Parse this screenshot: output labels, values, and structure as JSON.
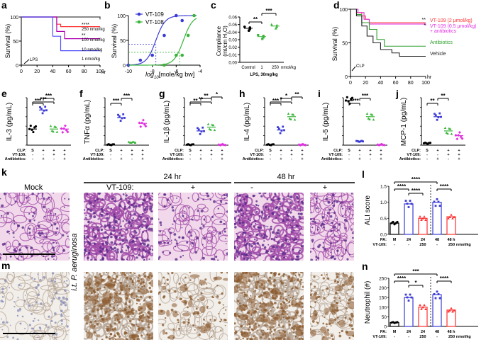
{
  "panels": {
    "a": {
      "letter": "a",
      "ylabel": "Survival (%)",
      "xlabel": "hr",
      "annotation": "LPS",
      "xticks": [
        "0",
        "20",
        "40",
        "60",
        "80",
        "100"
      ],
      "yticks": [
        "0",
        "50",
        "100"
      ],
      "legend": [
        {
          "label": "250 nmol/kg",
          "sig": "****",
          "color": "#444444"
        },
        {
          "label": "100 nmol/kg",
          "sig": "**",
          "color": "#ff3030"
        },
        {
          "label": "10 nmol/kg",
          "sig": "",
          "color": "#b000b0"
        },
        {
          "label": "1 nmol/kg",
          "sig": "",
          "color": "#5050ff"
        }
      ]
    },
    "b": {
      "letter": "b",
      "ylabel": "Survival (%)",
      "xlabel": "log10 [mole/kg bw]",
      "xlabel_pre": "log",
      "xlabel_sub": "10",
      "xlabel_post": "[mole/kg bw]",
      "xticks": [
        "-10",
        "-8",
        "-6",
        "-4"
      ],
      "yticks": [
        "0",
        "50",
        "100"
      ],
      "legend": [
        {
          "label": "VT-109",
          "color": "#3b3bd6"
        },
        {
          "label": "VT-108",
          "color": "#39b539"
        }
      ]
    },
    "c": {
      "letter": "c",
      "ylabel_pre": "Compliance",
      "ylabel": "(ml/cm H",
      "ylabel_sub": "2",
      "ylabel_post": "O)",
      "yticks": [
        "0.00",
        "0.01",
        "0.02",
        "0.03",
        "0.04",
        "0.05",
        "0.06"
      ],
      "xcats": [
        "Control",
        "1",
        "250"
      ],
      "xunit": "nmol/kg",
      "xlabel": "LPS, 30mg/kg",
      "sig": [
        "**",
        "***"
      ]
    },
    "d": {
      "letter": "d",
      "ylabel": "Survival (%)",
      "xlabel": "hr",
      "annotation": "CLP",
      "xticks": [
        "0",
        "20",
        "40",
        "60",
        "80",
        "100"
      ],
      "yticks": [
        "0",
        "50",
        "100"
      ],
      "legend": [
        {
          "label": "VT-109 (2 μmol/kg)",
          "sig": "**",
          "color": "#ff3030"
        },
        {
          "label": "VT-109 (0.5 μmol/kg)",
          "sig": "*",
          "color": "#e030e0"
        },
        {
          "label": "+ antibiotics",
          "sig": "",
          "color": "#e030e0"
        },
        {
          "label": "Antibiotics",
          "sig": "",
          "color": "#30a030"
        },
        {
          "label": "Vehicle",
          "sig": "",
          "color": "#222222"
        }
      ]
    },
    "cytokines": [
      {
        "letter": "e",
        "ylabel": "IL-3 (pg/mL)",
        "yticks": [
          "0",
          "1",
          "2",
          "3",
          "4",
          "5"
        ],
        "sig": [
          "***",
          "***",
          "***"
        ]
      },
      {
        "letter": "f",
        "ylabel": "TNFα (pg/mL)",
        "yticks": [
          "0",
          "1",
          "2",
          "3",
          "4",
          "5"
        ],
        "sig": [
          "***",
          "***"
        ]
      },
      {
        "letter": "g",
        "ylabel": "IL-1β (pg/mL)",
        "yticks": [
          "0",
          "1",
          "2",
          "3",
          "4",
          "5"
        ],
        "sig": [
          "**",
          "**",
          "**",
          "*"
        ]
      },
      {
        "letter": "h",
        "ylabel": "IL-4 (pg/mL)",
        "yticks": [
          "0",
          "1",
          "2",
          "3",
          "4",
          "5"
        ],
        "sig": [
          "***",
          "*",
          "*",
          "**"
        ]
      },
      {
        "letter": "i",
        "ylabel": "IL-5 (pg/mL)",
        "yticks": [
          "0",
          "1",
          "2",
          "3",
          "4",
          "5"
        ],
        "sig": [
          "****",
          "***"
        ]
      },
      {
        "letter": "j",
        "ylabel": "MCP-1 (pg/mL)",
        "yticks": [
          "0",
          "1",
          "2",
          "3",
          "4",
          "5"
        ],
        "sig": [
          "**",
          "**"
        ]
      }
    ],
    "treatment_rows": {
      "labels": [
        "CLP:",
        "VT-109:",
        "Antibiotics:"
      ],
      "values": [
        [
          "S",
          "+",
          "+",
          "+"
        ],
        [
          "-",
          "-",
          "+",
          "+"
        ],
        [
          "-",
          "+",
          "-",
          "+"
        ]
      ]
    },
    "k": {
      "letter": "k",
      "mock": "Mock",
      "vt": "VT-109:",
      "t1": "24 hr",
      "t2": "48 hr",
      "signs": [
        "-",
        "+",
        "-",
        "+"
      ],
      "side": "i.t. P. aeruginosa"
    },
    "l": {
      "letter": "l",
      "ylabel": "ALI score",
      "yticks": [
        "0.0",
        "0.5",
        "1.0",
        "1.5"
      ],
      "sig": [
        "****",
        "****",
        "****",
        "****"
      ],
      "pa_label": "PA:",
      "pa": [
        "M",
        "24",
        "24",
        "48",
        "48 h"
      ],
      "vt_label": "VT-109:",
      "vt": [
        "-",
        "-",
        "250",
        "-",
        "250 nmol/kg"
      ]
    },
    "m": {
      "letter": "m"
    },
    "n": {
      "letter": "n",
      "ylabel": "Neutrophil (#)",
      "yticks": [
        "0",
        "50",
        "100",
        "150",
        "200",
        "250"
      ],
      "sig": [
        "****",
        "*",
        "****",
        "***"
      ],
      "pa_label": "PA:",
      "pa": [
        "M",
        "24",
        "24",
        "48",
        "48 h"
      ],
      "vt_label": "VT-109:",
      "vt": [
        "-",
        "-",
        "250",
        "-",
        "250 nmol/kg"
      ]
    }
  },
  "colors": {
    "black": "#000000",
    "blue": "#3b3bd6",
    "green": "#39b539",
    "red": "#ff3030",
    "magenta": "#e030e0",
    "he_bg": "#f1d8ea",
    "he_tissue": "#a04aa8",
    "ihc_bg": "#f2eee9",
    "ihc_brown": "#8a5a2e"
  },
  "chart_data": [
    {
      "type": "line",
      "panel": "a",
      "title": "",
      "xlabel": "hr",
      "ylabel": "Survival (%)",
      "xlim": [
        0,
        100
      ],
      "ylim": [
        0,
        100
      ],
      "series": [
        {
          "name": "250 nmol/kg",
          "x": [
            0,
            60,
            100
          ],
          "y": [
            100,
            100,
            95
          ]
        },
        {
          "name": "100 nmol/kg",
          "x": [
            0,
            45,
            50,
            100
          ],
          "y": [
            100,
            85,
            80,
            80
          ]
        },
        {
          "name": "10 nmol/kg",
          "x": [
            0,
            45,
            55,
            100
          ],
          "y": [
            100,
            70,
            55,
            55
          ]
        },
        {
          "name": "1 nmol/kg",
          "x": [
            0,
            40,
            50,
            100
          ],
          "y": [
            100,
            60,
            30,
            30
          ]
        }
      ]
    },
    {
      "type": "scatter",
      "panel": "b",
      "xlabel": "log10 [mole/kg bw]",
      "ylabel": "Survival (%)",
      "xlim": [
        -10,
        -4
      ],
      "ylim": [
        0,
        100
      ],
      "series": [
        {
          "name": "VT-109",
          "x": [
            -10,
            -9,
            -8,
            -7,
            -6,
            -5.5
          ],
          "y": [
            0,
            10,
            20,
            60,
            100,
            90
          ]
        },
        {
          "name": "VT-108",
          "x": [
            -7,
            -6,
            -5.5,
            -5,
            -4.5
          ],
          "y": [
            0,
            20,
            20,
            60,
            100
          ]
        }
      ]
    },
    {
      "type": "bar",
      "panel": "c",
      "ylabel": "Compliance (ml/cm H2O)",
      "ylim": [
        0,
        0.06
      ],
      "categories": [
        "Control",
        "1",
        "250"
      ],
      "values": [
        0.045,
        0.034,
        0.048
      ]
    },
    {
      "type": "line",
      "panel": "d",
      "xlabel": "hr",
      "ylabel": "Survival (%)",
      "xlim": [
        0,
        100
      ],
      "ylim": [
        0,
        100
      ],
      "series": [
        {
          "name": "VT-109 (2 μmol/kg)",
          "x": [
            0,
            20,
            100
          ],
          "y": [
            100,
            80,
            80
          ]
        },
        {
          "name": "VT-109 (0.5 μmol/kg) + antibiotics",
          "x": [
            0,
            20,
            100
          ],
          "y": [
            100,
            75,
            75
          ]
        },
        {
          "name": "Antibiotics",
          "x": [
            0,
            20,
            40,
            100
          ],
          "y": [
            100,
            70,
            45,
            45
          ]
        },
        {
          "name": "Vehicle",
          "x": [
            0,
            20,
            40,
            60,
            100
          ],
          "y": [
            100,
            60,
            40,
            30,
            30
          ]
        }
      ]
    },
    {
      "type": "scatter",
      "panel": "e",
      "ylabel": "IL-3 (pg/mL)",
      "ylim": [
        0,
        5
      ],
      "categories": [
        "1",
        "2",
        "3",
        "4"
      ],
      "values": [
        1.7,
        3.7,
        1.7,
        1.7
      ]
    },
    {
      "type": "scatter",
      "panel": "f",
      "ylabel": "TNFα (pg/mL)",
      "ylim": [
        0,
        5
      ],
      "categories": [
        "1",
        "2",
        "3",
        "4"
      ],
      "values": [
        0.05,
        2.9,
        0.3,
        2.3
      ]
    },
    {
      "type": "scatter",
      "panel": "g",
      "ylabel": "IL-1β (pg/mL)",
      "ylim": [
        0,
        5
      ],
      "categories": [
        "1",
        "2",
        "3",
        "4"
      ],
      "values": [
        0.05,
        1.5,
        1.9,
        0.05
      ]
    },
    {
      "type": "scatter",
      "panel": "h",
      "ylabel": "IL-4 (pg/mL)",
      "ylim": [
        0,
        5
      ],
      "categories": [
        "1",
        "2",
        "3",
        "4"
      ],
      "values": [
        0.05,
        1.6,
        3.0,
        0.05
      ]
    },
    {
      "type": "scatter",
      "panel": "i",
      "ylabel": "IL-5 (pg/mL)",
      "ylim": [
        0,
        5
      ],
      "categories": [
        "1",
        "2",
        "3",
        "4"
      ],
      "values": [
        4.7,
        0.4,
        3.0,
        0.05
      ]
    },
    {
      "type": "scatter",
      "panel": "j",
      "ylabel": "MCP-1 (pg/mL)",
      "ylim": [
        0,
        5
      ],
      "categories": [
        "1",
        "2",
        "3",
        "4"
      ],
      "values": [
        0.2,
        3.0,
        1.5,
        1.0
      ]
    },
    {
      "type": "bar",
      "panel": "l",
      "ylabel": "ALI score",
      "ylim": [
        0,
        1.5
      ],
      "categories": [
        "M",
        "24",
        "24",
        "48",
        "48 h"
      ],
      "values": [
        0.35,
        0.95,
        0.5,
        1.0,
        0.55
      ]
    },
    {
      "type": "bar",
      "panel": "n",
      "ylabel": "Neutrophil (#)",
      "ylim": [
        0,
        250
      ],
      "categories": [
        "M",
        "24",
        "24",
        "48",
        "48 h"
      ],
      "values": [
        20,
        150,
        100,
        165,
        85
      ]
    }
  ]
}
